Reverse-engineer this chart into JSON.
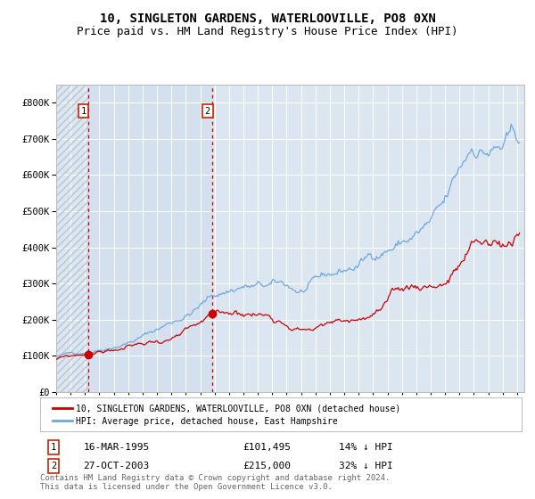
{
  "title": "10, SINGLETON GARDENS, WATERLOOVILLE, PO8 0XN",
  "subtitle": "Price paid vs. HM Land Registry's House Price Index (HPI)",
  "legend_label_red": "10, SINGLETON GARDENS, WATERLOOVILLE, PO8 0XN (detached house)",
  "legend_label_blue": "HPI: Average price, detached house, East Hampshire",
  "annotation1_date": "16-MAR-1995",
  "annotation1_price": "£101,495",
  "annotation1_hpi": "14% ↓ HPI",
  "annotation2_date": "27-OCT-2003",
  "annotation2_price": "£215,000",
  "annotation2_hpi": "32% ↓ HPI",
  "footer": "Contains HM Land Registry data © Crown copyright and database right 2024.\nThis data is licensed under the Open Government Licence v3.0.",
  "ylim": [
    0,
    850000
  ],
  "yticks": [
    0,
    100000,
    200000,
    300000,
    400000,
    500000,
    600000,
    700000,
    800000
  ],
  "ytick_labels": [
    "£0",
    "£100K",
    "£200K",
    "£300K",
    "£400K",
    "£500K",
    "£600K",
    "£700K",
    "£800K"
  ],
  "purchase1_year": 1995.21,
  "purchase1_value": 101495,
  "purchase2_year": 2003.82,
  "purchase2_value": 215000,
  "xlim_left": 1993.0,
  "xlim_right": 2025.5,
  "background_color": "#ffffff",
  "plot_bg_color": "#dce6f1",
  "hatch_color": "#b8c4d4",
  "grid_color": "#ffffff",
  "red_line_color": "#cc0000",
  "blue_line_color": "#6fa8dc",
  "dashed_line_color": "#cc0000",
  "annotation_box_edge": "#cc2200",
  "title_fontsize": 10,
  "subtitle_fontsize": 9,
  "axis_tick_fontsize": 7,
  "footer_fontsize": 6.5
}
